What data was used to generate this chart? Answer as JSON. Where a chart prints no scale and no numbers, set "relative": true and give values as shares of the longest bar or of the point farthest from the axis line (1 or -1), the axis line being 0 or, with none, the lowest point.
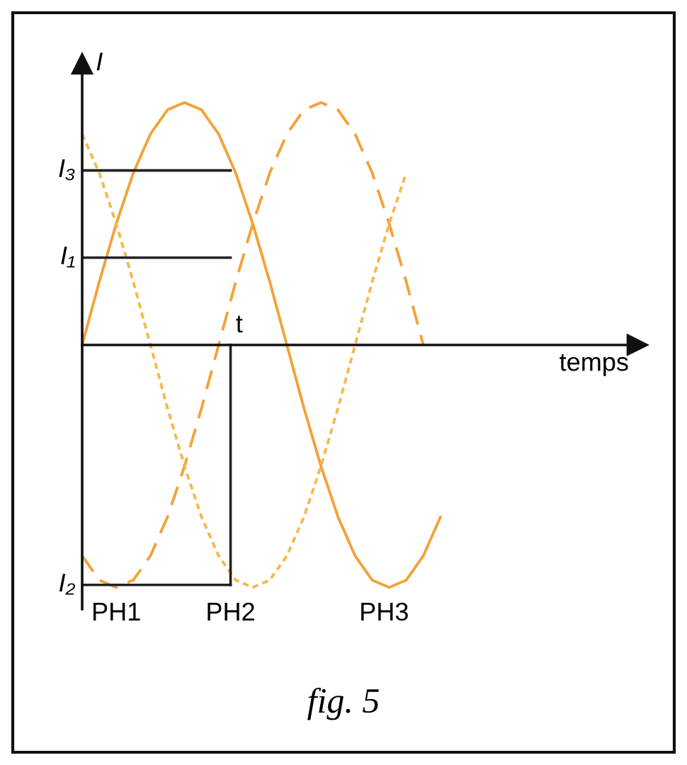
{
  "chart_data": {
    "type": "line",
    "relative": true,
    "ylabel": "I",
    "xlabel": "temps",
    "categories": [
      null,
      null,
      null,
      null,
      null,
      null,
      null,
      null,
      null,
      null,
      null,
      null,
      null,
      null,
      null,
      null,
      null,
      null,
      null,
      null,
      null,
      null
    ],
    "series": [
      {
        "color": "#f2a23a",
        "line_style": "solid",
        "values": [
          0,
          0.26,
          0.5,
          0.71,
          0.87,
          0.97,
          1,
          0.97,
          0.87,
          0.71,
          0.5,
          0.26,
          0,
          -0.26,
          -0.5,
          -0.71,
          -0.87,
          -0.97,
          -1,
          -0.97,
          -0.87,
          -0.71
        ]
      },
      {
        "color": "#f2a23a",
        "line_style": "dashed",
        "values": [
          -0.87,
          -0.97,
          -1,
          -0.97,
          -0.87,
          -0.71,
          -0.5,
          -0.26,
          0,
          0.26,
          0.5,
          0.71,
          0.87,
          0.97,
          1,
          0.97,
          0.87,
          0.71,
          0.5,
          0.26,
          0,
          null
        ]
      },
      {
        "color": "#f5b850",
        "line_style": "dotted",
        "values": [
          0.87,
          0.71,
          0.5,
          0.26,
          0,
          -0.26,
          -0.5,
          -0.71,
          -0.87,
          -0.97,
          -1,
          -0.97,
          -0.87,
          -0.71,
          -0.5,
          -0.26,
          0,
          0.26,
          0.5,
          0.71,
          null,
          null
        ]
      }
    ],
    "ref_lines": [
      {
        "axis": "y",
        "value": 0.72,
        "label": "I₃",
        "color": "#222222"
      },
      {
        "axis": "y",
        "value": 0.36,
        "label": "I₁",
        "color": "#222222"
      },
      {
        "axis": "y",
        "value": -0.99,
        "label": "I₂",
        "color": "#222222"
      }
    ],
    "annotations": [
      "t",
      "PH1",
      "PH2",
      "PH3",
      "fig. 5"
    ]
  }
}
